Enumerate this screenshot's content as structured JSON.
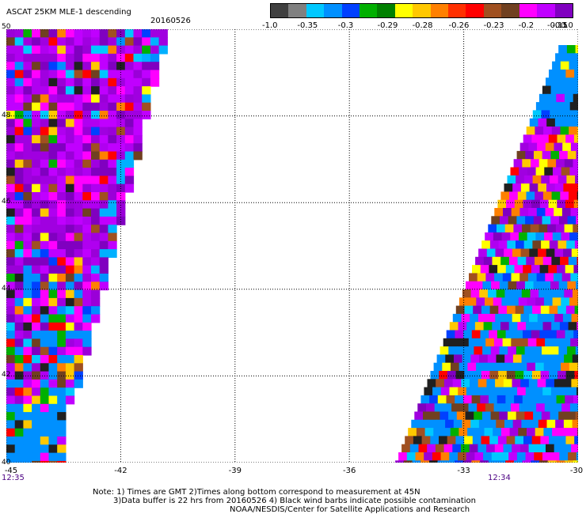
{
  "title": "ASCAT 25KM MLE-1 descending",
  "date": "20160526",
  "legend": {
    "colors": [
      "#404040",
      "#808080",
      "#00c8ff",
      "#0090ff",
      "#0040ff",
      "#00b000",
      "#008000",
      "#ffff00",
      "#ffc800",
      "#ff8000",
      "#ff3000",
      "#ff0000",
      "#a05020",
      "#704020",
      "#ff00ff",
      "#c000ff",
      "#8000c0"
    ],
    "ticks": [
      {
        "label": "-1.0",
        "pos": 0.0
      },
      {
        "label": "-0.35",
        "pos": 0.116
      },
      {
        "label": "-0.3",
        "pos": 0.25
      },
      {
        "label": "-0.29",
        "pos": 0.38
      },
      {
        "label": "-0.28",
        "pos": 0.495
      },
      {
        "label": "-0.26",
        "pos": 0.615
      },
      {
        "label": "-0.23",
        "pos": 0.73
      },
      {
        "label": "-0.2",
        "pos": 0.845
      },
      {
        "label": "-0.15",
        "pos": 0.94
      },
      {
        "label": "-0.1",
        "pos": 0.993
      },
      {
        "label": "0.0",
        "pos": 1.0
      }
    ]
  },
  "map": {
    "lon_range": [
      -45,
      -30
    ],
    "lat_range": [
      40,
      50
    ],
    "lon_ticks": [
      "-45",
      "-42",
      "-39",
      "-36",
      "-33",
      "-30"
    ],
    "lat_ticks": [
      "50",
      "48",
      "46",
      "44",
      "42",
      "40"
    ],
    "grid": "dotted",
    "swaths": [
      {
        "name": "west-swath",
        "time": "12:35"
      },
      {
        "name": "east-swath",
        "time": "12:34"
      }
    ]
  },
  "times": {
    "left": "12:35",
    "right": "12:34"
  },
  "notes": {
    "line1": "Note: 1) Times are GMT 2)Times along bottom correspond to measurement at 45N",
    "line2": "3)Data buffer is 22 hrs from 20160526 4) Black wind barbs indicate possible contamination",
    "line3": "NOAA/NESDIS/Center for Satellite Applications and Research"
  }
}
